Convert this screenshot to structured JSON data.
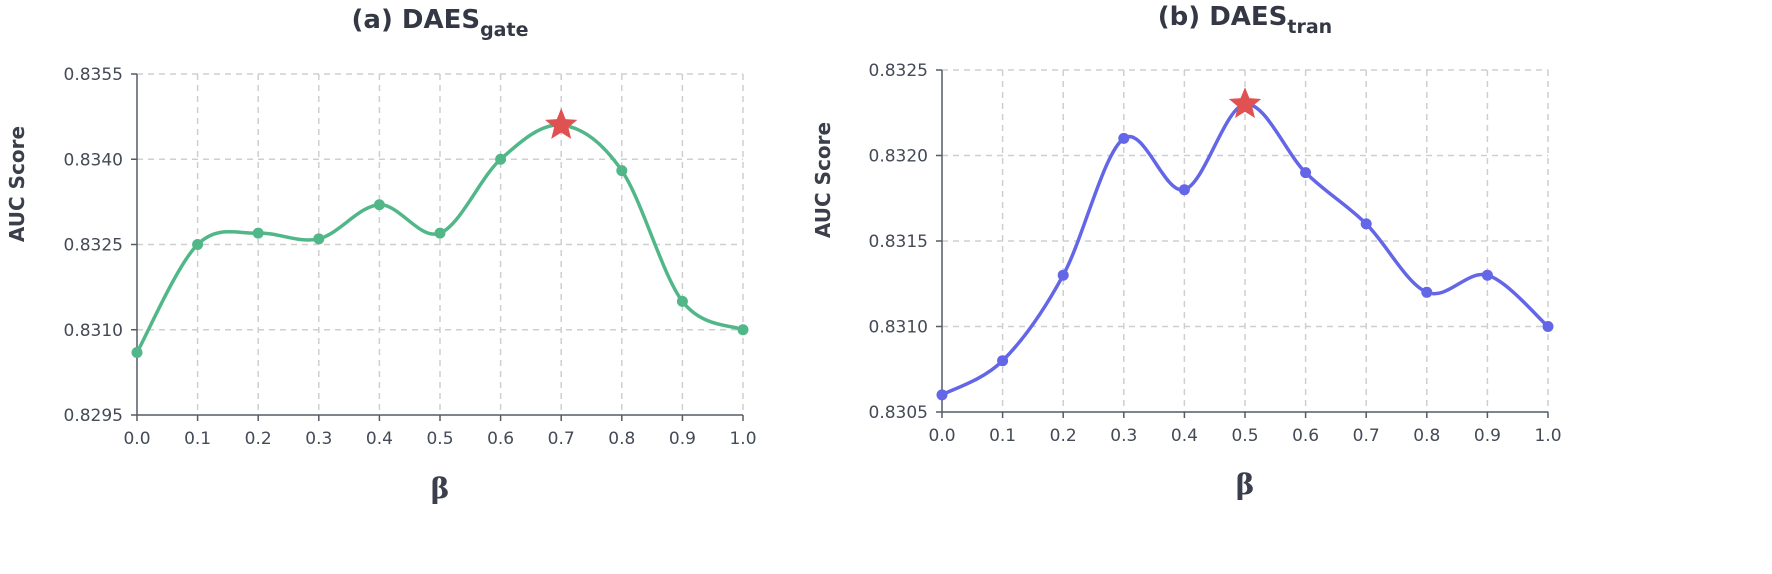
{
  "chart_data": [
    {
      "type": "line",
      "title_main": "(a) DAES",
      "title_sub": "gate",
      "xlabel": "β",
      "ylabel": "AUC Score",
      "x": [
        0.0,
        0.1,
        0.2,
        0.3,
        0.4,
        0.5,
        0.6,
        0.7,
        0.8,
        0.9,
        1.0
      ],
      "x_ticks": [
        "0.0",
        "0.1",
        "0.2",
        "0.3",
        "0.4",
        "0.5",
        "0.6",
        "0.7",
        "0.8",
        "0.9",
        "1.0"
      ],
      "y_ticks": [
        "0.8295",
        "0.8310",
        "0.8325",
        "0.8340",
        "0.8355"
      ],
      "ylim": [
        0.8295,
        0.8355
      ],
      "series": [
        {
          "values": [
            0.8306,
            0.8325,
            0.8327,
            0.8326,
            0.8332,
            0.8327,
            0.834,
            0.8346,
            0.8338,
            0.8315,
            0.831
          ]
        }
      ],
      "best_index": 7,
      "color": "#52b788",
      "star_color": "#e05252",
      "grid": true
    },
    {
      "type": "line",
      "title_main": "(b) DAES",
      "title_sub": "tran",
      "xlabel": "β",
      "ylabel": "AUC Score",
      "x": [
        0.0,
        0.1,
        0.2,
        0.3,
        0.4,
        0.5,
        0.6,
        0.7,
        0.8,
        0.9,
        1.0
      ],
      "x_ticks": [
        "0.0",
        "0.1",
        "0.2",
        "0.3",
        "0.4",
        "0.5",
        "0.6",
        "0.7",
        "0.8",
        "0.9",
        "1.0"
      ],
      "y_ticks": [
        "0.8305",
        "0.8310",
        "0.8315",
        "0.8320",
        "0.8325"
      ],
      "ylim": [
        0.8305,
        0.8325
      ],
      "series": [
        {
          "values": [
            0.8306,
            0.8308,
            0.8313,
            0.8321,
            0.8318,
            0.8323,
            0.8319,
            0.8316,
            0.8312,
            0.8313,
            0.831
          ]
        }
      ],
      "best_index": 5,
      "color": "#6366e6",
      "star_color": "#e05252",
      "grid": true
    }
  ]
}
